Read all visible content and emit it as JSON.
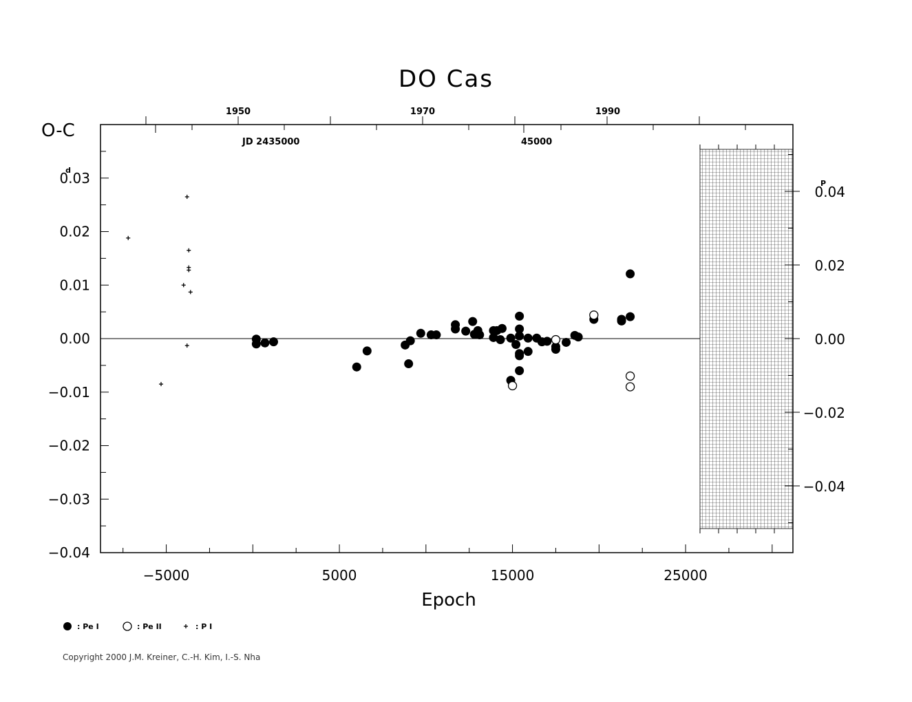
{
  "chart_data": {
    "type": "scatter",
    "title": "DO Cas",
    "xlabel": "Epoch",
    "ylabel": "O-C",
    "y_unit_left": "d",
    "y_unit_right": "P",
    "xlim": [
      -8800,
      31200
    ],
    "ylim": [
      -0.04,
      0.04
    ],
    "x_ticks": [
      -5000,
      5000,
      15000,
      25000
    ],
    "x_tick_labels": [
      "−5000",
      "5000",
      "15000",
      "25000"
    ],
    "y_ticks": [
      0.03,
      0.02,
      0.01,
      0.0,
      -0.01,
      -0.02,
      -0.03,
      -0.04
    ],
    "y_tick_labels": [
      "0.03",
      "0.02",
      "0.01",
      "0.00",
      "−0.01",
      "−0.02",
      "−0.03",
      "−0.04"
    ],
    "right_ticks": [
      0.04,
      0.02,
      0.0,
      -0.02,
      -0.04
    ],
    "right_tick_labels": [
      "0.04",
      "0.02",
      "0.00",
      "−0.02",
      "−0.04"
    ],
    "top_year_ticks": [
      1950,
      1970,
      1990
    ],
    "jd_labels": [
      "JD 2435000",
      "45000"
    ],
    "grid": false,
    "series": [
      {
        "name": ": Pe I",
        "marker": "filled-circle",
        "points": [
          [
            200,
            -0.0001
          ],
          [
            200,
            -0.001
          ],
          [
            700,
            -0.0008
          ],
          [
            1200,
            -0.0006
          ],
          [
            6000,
            -0.0053
          ],
          [
            6600,
            -0.0023
          ],
          [
            8800,
            -0.0012
          ],
          [
            9000,
            -0.0047
          ],
          [
            9100,
            -0.0004
          ],
          [
            9700,
            0.001
          ],
          [
            10300,
            0.0007
          ],
          [
            10600,
            0.0007
          ],
          [
            11700,
            0.0026
          ],
          [
            11700,
            0.0018
          ],
          [
            12300,
            0.0014
          ],
          [
            12700,
            0.0032
          ],
          [
            12800,
            0.0008
          ],
          [
            13000,
            0.0015
          ],
          [
            13100,
            0.0007
          ],
          [
            13900,
            0.0002
          ],
          [
            13900,
            0.0015
          ],
          [
            14100,
            0.0015
          ],
          [
            14300,
            -0.0002
          ],
          [
            14400,
            0.0019
          ],
          [
            14900,
            0.0001
          ],
          [
            14900,
            -0.0078
          ],
          [
            15200,
            -0.0011
          ],
          [
            15400,
            0.0042
          ],
          [
            15400,
            0.0018
          ],
          [
            15400,
            0.0005
          ],
          [
            15400,
            -0.0028
          ],
          [
            15400,
            -0.0032
          ],
          [
            15400,
            -0.006
          ],
          [
            15900,
            0.0001
          ],
          [
            15900,
            -0.0024
          ],
          [
            16400,
            0.0001
          ],
          [
            16700,
            -0.0006
          ],
          [
            17000,
            -0.0005
          ],
          [
            17500,
            -0.0015
          ],
          [
            17500,
            -0.002
          ],
          [
            18100,
            -0.0007
          ],
          [
            18600,
            0.0006
          ],
          [
            18800,
            0.0003
          ],
          [
            19700,
            0.0036
          ],
          [
            21300,
            0.0033
          ],
          [
            21300,
            0.0036
          ],
          [
            21800,
            0.0121
          ],
          [
            21800,
            0.0041
          ]
        ]
      },
      {
        "name": ": Pe II",
        "marker": "open-circle",
        "points": [
          [
            15000,
            -0.0088
          ],
          [
            17500,
            -0.0002
          ],
          [
            19700,
            0.0044
          ],
          [
            21800,
            -0.007
          ],
          [
            21800,
            -0.009
          ]
        ]
      },
      {
        "name": ": P I",
        "marker": "plus",
        "points": [
          [
            -7200,
            0.0188
          ],
          [
            -5300,
            -0.0085
          ],
          [
            -4000,
            0.01
          ],
          [
            -3800,
            0.0265
          ],
          [
            -3700,
            0.0165
          ],
          [
            -3700,
            0.0133
          ],
          [
            -3700,
            0.0128
          ],
          [
            -3600,
            0.0087
          ],
          [
            -3800,
            -0.0013
          ]
        ]
      }
    ]
  },
  "copyright": "Copyright 2000 J.M. Kreiner, C.-H. Kim, I.-S. Nha"
}
